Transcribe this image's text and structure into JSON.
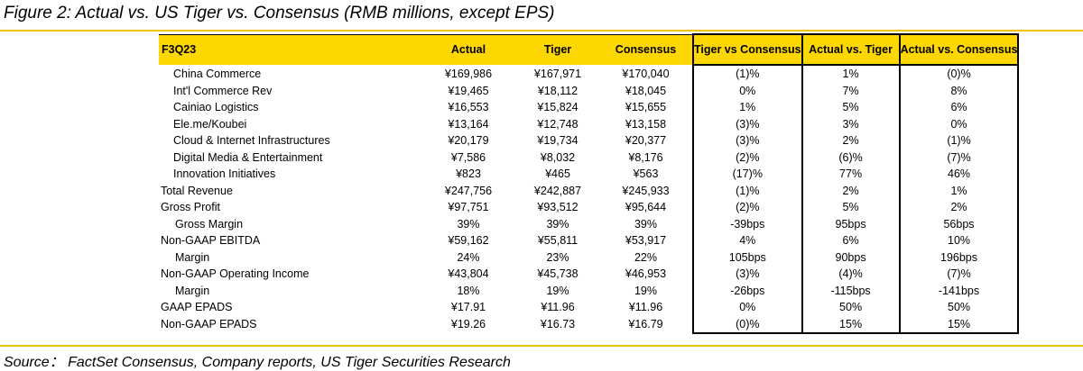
{
  "title": "Figure 2: Actual vs. US Tiger vs. Consensus (RMB millions, except EPS)",
  "source": "Source： FactSet Consensus, Company reports, US Tiger Securities Research",
  "table": {
    "headers": [
      "F3Q23",
      "Actual",
      "Tiger",
      "Consensus",
      "Tiger vs Consensus",
      "Actual vs. Tiger",
      "Actual vs. Consensus"
    ],
    "rows": [
      {
        "label": "China Commerce",
        "indent": 1,
        "cells": [
          "¥169,986",
          "¥167,971",
          "¥170,040",
          "(1)%",
          "1%",
          "(0)%"
        ]
      },
      {
        "label": "Int'l Commerce Rev",
        "indent": 1,
        "cells": [
          "¥19,465",
          "¥18,112",
          "¥18,045",
          "0%",
          "7%",
          "8%"
        ]
      },
      {
        "label": "Cainiao Logistics",
        "indent": 1,
        "cells": [
          "¥16,553",
          "¥15,824",
          "¥15,655",
          "1%",
          "5%",
          "6%"
        ]
      },
      {
        "label": "Ele.me/Koubei",
        "indent": 1,
        "cells": [
          "¥13,164",
          "¥12,748",
          "¥13,158",
          "(3)%",
          "3%",
          "0%"
        ]
      },
      {
        "label": "Cloud & Internet Infrastructures",
        "indent": 1,
        "cells": [
          "¥20,179",
          "¥19,734",
          "¥20,377",
          "(3)%",
          "2%",
          "(1)%"
        ]
      },
      {
        "label": "Digital Media & Entertainment",
        "indent": 1,
        "cells": [
          "¥7,586",
          "¥8,032",
          "¥8,176",
          "(2)%",
          "(6)%",
          "(7)%"
        ]
      },
      {
        "label": "Innovation Initiatives",
        "indent": 1,
        "cells": [
          "¥823",
          "¥465",
          "¥563",
          "(17)%",
          "77%",
          "46%"
        ]
      },
      {
        "label": "Total Revenue",
        "indent": 0,
        "cells": [
          "¥247,756",
          "¥242,887",
          "¥245,933",
          "(1)%",
          "2%",
          "1%"
        ]
      },
      {
        "label": "Gross Profit",
        "indent": 0,
        "cells": [
          "¥97,751",
          "¥93,512",
          "¥95,644",
          "(2)%",
          "5%",
          "2%"
        ]
      },
      {
        "label": "Gross Margin",
        "indent": 2,
        "cells": [
          "39%",
          "39%",
          "39%",
          "-39bps",
          "95bps",
          "56bps"
        ]
      },
      {
        "label": "Non-GAAP EBITDA",
        "indent": 0,
        "cells": [
          "¥59,162",
          "¥55,811",
          "¥53,917",
          "4%",
          "6%",
          "10%"
        ]
      },
      {
        "label": "Margin",
        "indent": 2,
        "cells": [
          "24%",
          "23%",
          "22%",
          "105bps",
          "90bps",
          "196bps"
        ]
      },
      {
        "label": "Non-GAAP Operating Income",
        "indent": 0,
        "cells": [
          "¥43,804",
          "¥45,738",
          "¥46,953",
          "(3)%",
          "(4)%",
          "(7)%"
        ]
      },
      {
        "label": "Margin",
        "indent": 2,
        "cells": [
          "18%",
          "19%",
          "19%",
          "-26bps",
          "-115bps",
          "-141bps"
        ]
      },
      {
        "label": "GAAP EPADS",
        "indent": 0,
        "cells": [
          "¥17.91",
          "¥11.96",
          "¥11.96",
          "0%",
          "50%",
          "50%"
        ]
      },
      {
        "label": "Non-GAAP EPADS",
        "indent": 0,
        "cells": [
          "¥19.26",
          "¥16.73",
          "¥16.79",
          "(0)%",
          "15%",
          "15%"
        ]
      }
    ]
  },
  "colors": {
    "header_bg": "#ffd700",
    "rule": "#f3c300"
  }
}
